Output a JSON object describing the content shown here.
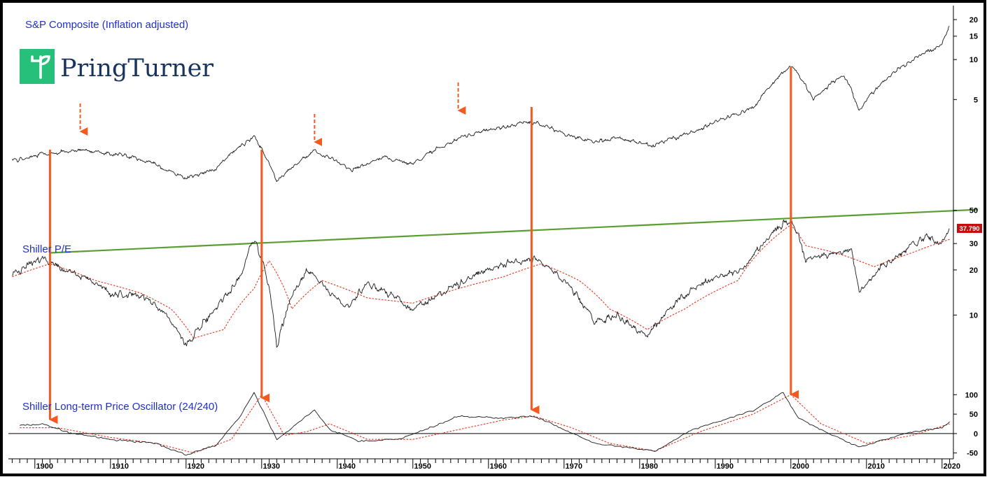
{
  "colors": {
    "price": "#1a1a1a",
    "moving_average": "#e8331c",
    "trendline": "#5a9e32",
    "arrow": "#f25a1f",
    "label": "#1f2fd0",
    "logo_green": "#27c07a",
    "logo_text": "#17335f",
    "last_value_bg": "#c01010"
  },
  "logo": {
    "text": "PringTurner",
    "icon": "sprout-icon"
  },
  "chart_data": [
    {
      "type": "line",
      "title": "S&P Composite (Inflation adjusted)",
      "scale": "log",
      "yticks": [
        5,
        10,
        15,
        20
      ],
      "x": [
        1897,
        1901,
        1906,
        1912,
        1916,
        1920,
        1924,
        1929,
        1932,
        1937,
        1942,
        1946,
        1950,
        1956,
        1960,
        1966,
        1970,
        1974,
        1977,
        1982,
        1987,
        1995,
        2000,
        2003,
        2007,
        2009,
        2014,
        2020,
        2021
      ],
      "values": [
        1.72,
        1.95,
        2.08,
        1.9,
        1.62,
        1.25,
        1.52,
        2.6,
        1.18,
        2.05,
        1.45,
        1.85,
        1.62,
        2.55,
        2.95,
        3.4,
        2.75,
        2.4,
        2.55,
        2.25,
        2.85,
        4.3,
        9.0,
        5.0,
        7.6,
        4.1,
        8.3,
        13.0,
        18.0
      ],
      "markers": [
        {
          "type": "dashed-arrow",
          "x": 1906
        },
        {
          "type": "dashed-arrow",
          "x": 1937
        },
        {
          "type": "dashed-arrow",
          "x": 1956
        }
      ]
    },
    {
      "type": "line",
      "title": "Shiller P/E",
      "scale": "log",
      "yticks": [
        10,
        20,
        30,
        50
      ],
      "last_value": "37.790",
      "x": [
        1897,
        1901,
        1905,
        1910,
        1915,
        1918,
        1920,
        1924,
        1927,
        1929,
        1932,
        1936,
        1941,
        1944,
        1950,
        1956,
        1961,
        1966,
        1970,
        1974,
        1977,
        1981,
        1987,
        1994,
        2000,
        2002,
        2008,
        2009,
        2014,
        2018,
        2020,
        2021
      ],
      "values": [
        18,
        24,
        19,
        14,
        13,
        9,
        6,
        11,
        17,
        32,
        6,
        20,
        11,
        16,
        11,
        16,
        21,
        24,
        17,
        9,
        10,
        7,
        15,
        21,
        44,
        23,
        27,
        14,
        25,
        33,
        30,
        37.79
      ],
      "moving_average": {
        "x": [
          1897,
          1902,
          1908,
          1914,
          1918,
          1921,
          1925,
          1929,
          1931,
          1934,
          1938,
          1944,
          1950,
          1956,
          1962,
          1967,
          1972,
          1976,
          1981,
          1986,
          1993,
          2000,
          2002,
          2006,
          2011,
          2016,
          2021
        ],
        "values": [
          18,
          22,
          17,
          14,
          11,
          7,
          8,
          15,
          23,
          11,
          17,
          13,
          12,
          15,
          18,
          22,
          17,
          11,
          8,
          11,
          17,
          40,
          29,
          26,
          21,
          26,
          32
        ]
      },
      "trendline": {
        "x": [
          1902,
          2022
        ],
        "values": [
          26,
          50
        ]
      }
    },
    {
      "type": "line",
      "title": "Shiller Long-term Price Oscillator (24/240)",
      "yticks": [
        -50,
        0,
        50,
        100
      ],
      "x": [
        1898,
        1901,
        1905,
        1910,
        1916,
        1920,
        1924,
        1927,
        1929,
        1932,
        1935,
        1937,
        1939,
        1943,
        1948,
        1953,
        1956,
        1962,
        1966,
        1969,
        1974,
        1982,
        1987,
        1995,
        1999,
        2001,
        2004,
        2009,
        2015,
        2018,
        2020,
        2021
      ],
      "values": [
        20,
        25,
        0,
        -15,
        -25,
        -55,
        -30,
        40,
        105,
        -15,
        30,
        60,
        10,
        -20,
        -15,
        20,
        45,
        40,
        45,
        20,
        -25,
        -45,
        10,
        60,
        105,
        40,
        10,
        -35,
        0,
        10,
        15,
        30
      ],
      "moving_average": {
        "x": [
          1898,
          1903,
          1910,
          1916,
          1921,
          1926,
          1930,
          1933,
          1936,
          1939,
          1944,
          1950,
          1956,
          1962,
          1966,
          1971,
          1976,
          1982,
          1988,
          1995,
          2000,
          2004,
          2010,
          2016,
          2021
        ],
        "values": [
          15,
          15,
          -10,
          -25,
          -50,
          -15,
          100,
          -5,
          5,
          25,
          -15,
          -15,
          10,
          35,
          45,
          15,
          -25,
          -45,
          5,
          50,
          100,
          25,
          -25,
          -5,
          25
        ]
      },
      "zero_line": 0
    }
  ],
  "x_axis": {
    "ticks": [
      1900,
      1910,
      1920,
      1930,
      1940,
      1950,
      1960,
      1970,
      1980,
      1990,
      2000,
      2010,
      2020
    ],
    "range": [
      1896.5,
      2021.5
    ]
  },
  "arrows": [
    {
      "x": 1902,
      "from": "Shiller P/E",
      "to": "Shiller Long-term Price Oscillator (24/240)"
    },
    {
      "x": 1930,
      "from": "Shiller P/E",
      "to": "Shiller Long-term Price Oscillator (24/240)"
    },
    {
      "x": 1965.7,
      "from": "S&P Composite (Inflation adjusted)",
      "to": "Shiller Long-term Price Oscillator (24/240)"
    },
    {
      "x": 2000,
      "from": "S&P Composite (Inflation adjusted)",
      "to": "Shiller Long-term Price Oscillator (24/240)"
    }
  ]
}
